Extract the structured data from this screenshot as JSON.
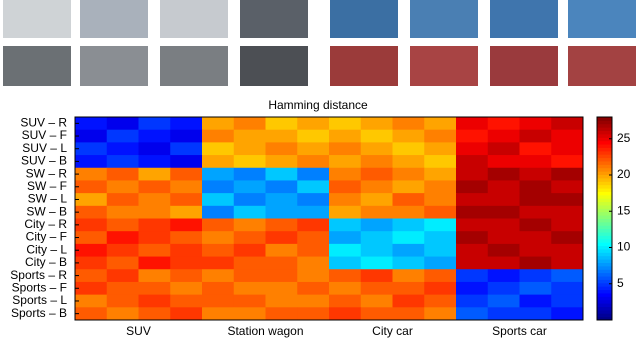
{
  "chart_data": {
    "type": "heatmap",
    "title": "Hamming distance",
    "row_labels": [
      "SUV – R",
      "SUV – F",
      "SUV – L",
      "SUV – B",
      "SW – R",
      "SW – F",
      "SW – L",
      "SW – B",
      "City – R",
      "City – F",
      "City – L",
      "City – B",
      "Sports – R",
      "Sports – F",
      "Sports – L",
      "Sports – B"
    ],
    "categories": [
      "SUV",
      "Station wagon",
      "City car",
      "Sports car"
    ],
    "values": [
      [
        4,
        3,
        5,
        4,
        20,
        21,
        19,
        20,
        19,
        20,
        21,
        20,
        25,
        24,
        25,
        26
      ],
      [
        3,
        5,
        4,
        3,
        21,
        20,
        20,
        19,
        20,
        19,
        20,
        21,
        24,
        25,
        26,
        25
      ],
      [
        5,
        4,
        3,
        5,
        19,
        20,
        21,
        20,
        21,
        20,
        19,
        20,
        25,
        26,
        24,
        25
      ],
      [
        4,
        5,
        4,
        3,
        20,
        19,
        20,
        21,
        20,
        21,
        20,
        19,
        26,
        25,
        25,
        24
      ],
      [
        21,
        22,
        20,
        22,
        8,
        7,
        9,
        7,
        21,
        22,
        21,
        20,
        26,
        27,
        26,
        27
      ],
      [
        22,
        21,
        22,
        21,
        7,
        8,
        7,
        9,
        22,
        21,
        20,
        21,
        27,
        26,
        27,
        26
      ],
      [
        20,
        22,
        21,
        22,
        9,
        7,
        8,
        7,
        21,
        20,
        22,
        21,
        26,
        26,
        27,
        27
      ],
      [
        22,
        21,
        21,
        20,
        7,
        9,
        8,
        8,
        20,
        21,
        21,
        22,
        27,
        27,
        26,
        26
      ],
      [
        23,
        22,
        23,
        24,
        22,
        21,
        22,
        23,
        9,
        8,
        9,
        10,
        26,
        26,
        27,
        26
      ],
      [
        22,
        24,
        23,
        22,
        21,
        22,
        23,
        22,
        8,
        9,
        10,
        9,
        27,
        26,
        26,
        27
      ],
      [
        24,
        23,
        22,
        23,
        22,
        23,
        21,
        22,
        10,
        9,
        8,
        9,
        26,
        27,
        26,
        26
      ],
      [
        23,
        22,
        24,
        23,
        23,
        22,
        22,
        21,
        9,
        10,
        9,
        8,
        26,
        26,
        27,
        26
      ],
      [
        22,
        23,
        21,
        22,
        21,
        22,
        22,
        21,
        22,
        23,
        21,
        22,
        5,
        4,
        5,
        6
      ],
      [
        23,
        22,
        22,
        21,
        22,
        21,
        21,
        22,
        21,
        22,
        22,
        23,
        4,
        5,
        6,
        5
      ],
      [
        21,
        22,
        23,
        22,
        22,
        22,
        21,
        21,
        22,
        21,
        23,
        22,
        5,
        6,
        4,
        5
      ],
      [
        22,
        21,
        22,
        23,
        21,
        21,
        22,
        22,
        23,
        22,
        22,
        21,
        6,
        5,
        5,
        4
      ]
    ],
    "clim": [
      0,
      28
    ],
    "colorbar_ticks": [
      5,
      10,
      15,
      20,
      25
    ],
    "colormap": "jet"
  }
}
